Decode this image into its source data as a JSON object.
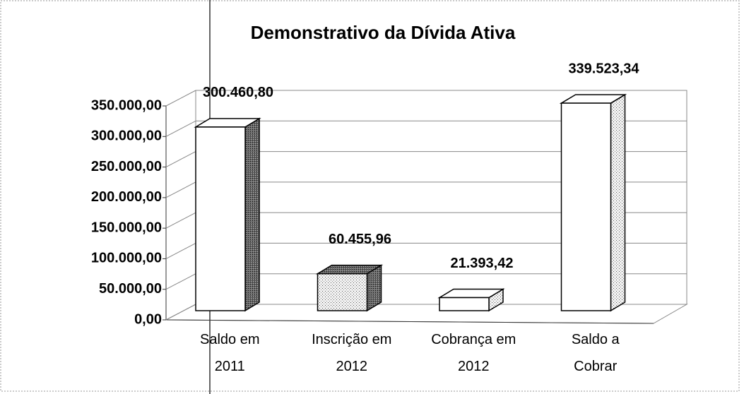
{
  "chart_data": {
    "type": "bar3d",
    "title": "Demonstrativo da Dívida Ativa",
    "categories": [
      "Saldo em 2011",
      "Inscrição em 2012",
      "Cobrança em 2012",
      "Saldo a Cobrar"
    ],
    "values": [
      300460.8,
      60455.96,
      21393.42,
      339523.34
    ],
    "value_labels": [
      "300.460,80",
      "60.455,96",
      "21.393,42",
      "339.523,34"
    ],
    "colors": [
      "#ffffff",
      "#d9d9d9",
      "#ffffff",
      "#ffffff"
    ],
    "ylim": [
      0,
      350000
    ],
    "yticks": [
      {
        "value": 0,
        "label": "0,00"
      },
      {
        "value": 50000,
        "label": "50.000,00"
      },
      {
        "value": 100000,
        "label": "100.000,00"
      },
      {
        "value": 150000,
        "label": "150.000,00"
      },
      {
        "value": 200000,
        "label": "200.000,00"
      },
      {
        "value": 250000,
        "label": "250.000,00"
      },
      {
        "value": 300000,
        "label": "300.000,00"
      },
      {
        "value": 350000,
        "label": "350.000,00"
      }
    ],
    "grid": true
  }
}
